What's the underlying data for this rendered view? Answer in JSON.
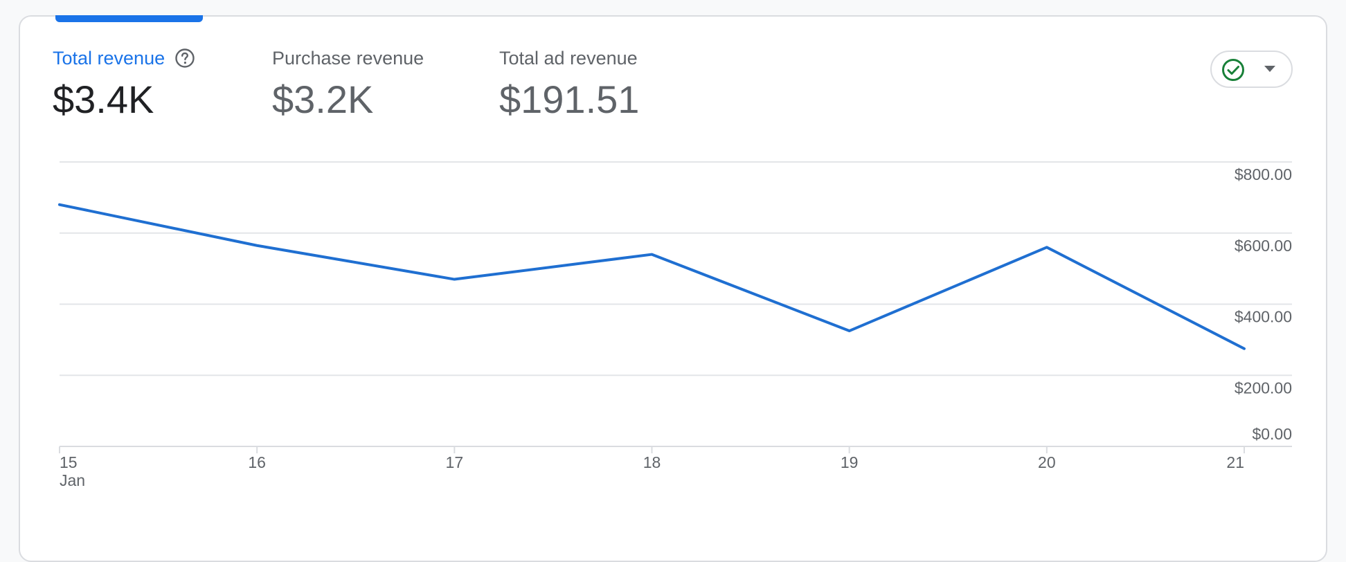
{
  "metrics": [
    {
      "label": "Total revenue",
      "value": "$3.4K",
      "active": true
    },
    {
      "label": "Purchase revenue",
      "value": "$3.2K",
      "active": false
    },
    {
      "label": "Total ad revenue",
      "value": "$191.51",
      "active": false
    }
  ],
  "icons": {
    "help": "help-circle-icon",
    "selector_check": "check-circle-icon",
    "selector_caret": "caret-down-icon"
  },
  "colors": {
    "accent": "#1a73e8",
    "line": "#1f6fd1",
    "check": "#188038"
  },
  "chart_data": {
    "type": "line",
    "x": [
      "15",
      "16",
      "17",
      "18",
      "19",
      "20",
      "21"
    ],
    "x_sublabel": "Jan",
    "series": [
      {
        "values": [
          680,
          565,
          470,
          540,
          325,
          560,
          275
        ]
      }
    ],
    "y_ticks": [
      "$0.00",
      "$200.00",
      "$400.00",
      "$600.00",
      "$800.00"
    ],
    "ylim": [
      0,
      800
    ],
    "grid": true,
    "y_axis_side": "right"
  }
}
